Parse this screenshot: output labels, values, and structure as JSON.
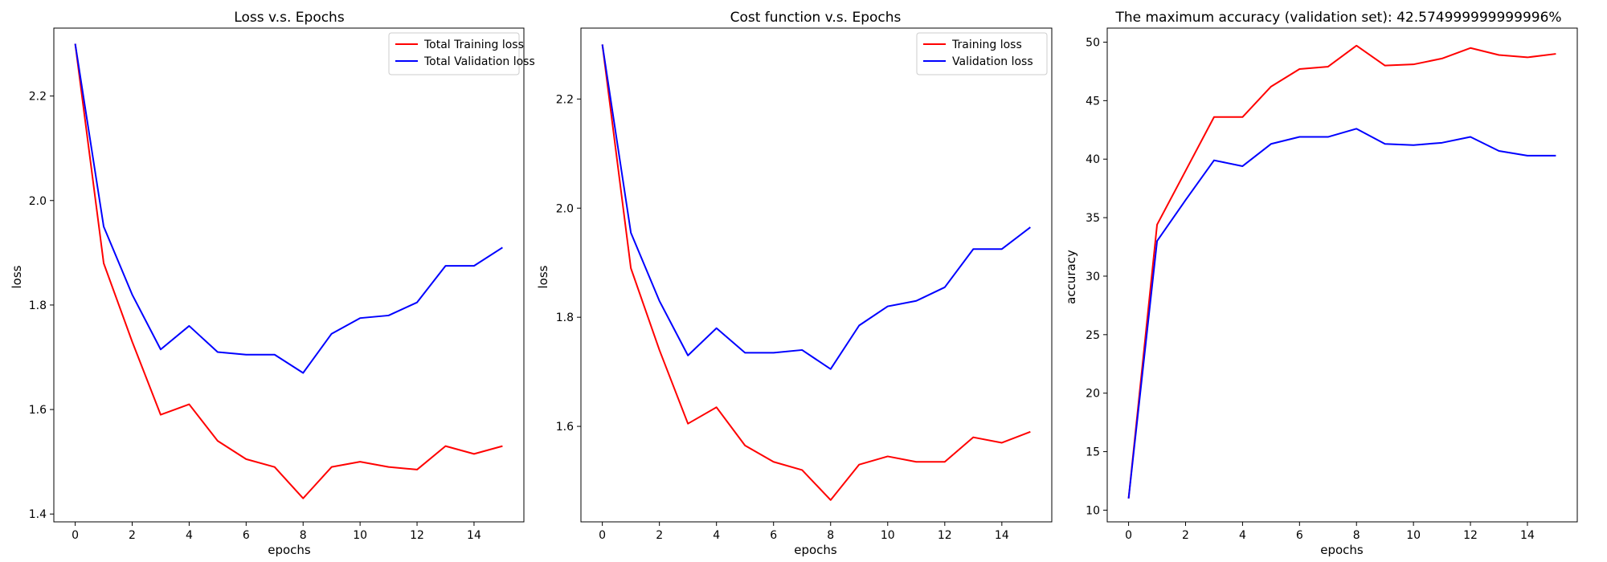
{
  "chart_data": [
    {
      "type": "line",
      "title": "Loss v.s. Epochs",
      "xlabel": "epochs",
      "ylabel": "loss",
      "xlim": [
        -0.75,
        15.75
      ],
      "ylim": [
        1.385,
        2.33
      ],
      "xticks": [
        0,
        2,
        4,
        6,
        8,
        10,
        12,
        14
      ],
      "yticks": [
        1.4,
        1.6,
        1.8,
        2.0,
        2.2
      ],
      "ytick_decimals": 1,
      "legend_position": "upper right",
      "grid": false,
      "x": [
        0,
        1,
        2,
        3,
        4,
        5,
        6,
        7,
        8,
        9,
        10,
        11,
        12,
        13,
        14,
        15
      ],
      "series": [
        {
          "name": "Total Training loss",
          "color": "#ff0000",
          "values": [
            2.3,
            1.88,
            1.73,
            1.59,
            1.61,
            1.54,
            1.505,
            1.49,
            1.43,
            1.49,
            1.5,
            1.49,
            1.485,
            1.53,
            1.515,
            1.53
          ]
        },
        {
          "name": "Total Validation loss",
          "color": "#0000ff",
          "values": [
            2.3,
            1.95,
            1.82,
            1.715,
            1.76,
            1.71,
            1.705,
            1.705,
            1.67,
            1.745,
            1.775,
            1.78,
            1.805,
            1.875,
            1.875,
            1.91
          ]
        }
      ]
    },
    {
      "type": "line",
      "title": "Cost function v.s. Epochs",
      "xlabel": "epochs",
      "ylabel": "loss",
      "xlim": [
        -0.75,
        15.75
      ],
      "ylim": [
        1.425,
        2.33
      ],
      "xticks": [
        0,
        2,
        4,
        6,
        8,
        10,
        12,
        14
      ],
      "yticks": [
        1.6,
        1.8,
        2.0,
        2.2
      ],
      "ytick_decimals": 1,
      "legend_position": "upper right",
      "grid": false,
      "x": [
        0,
        1,
        2,
        3,
        4,
        5,
        6,
        7,
        8,
        9,
        10,
        11,
        12,
        13,
        14,
        15
      ],
      "series": [
        {
          "name": "Training loss",
          "color": "#ff0000",
          "values": [
            2.3,
            1.89,
            1.74,
            1.605,
            1.635,
            1.565,
            1.535,
            1.52,
            1.465,
            1.53,
            1.545,
            1.535,
            1.535,
            1.58,
            1.57,
            1.59
          ]
        },
        {
          "name": "Validation loss",
          "color": "#0000ff",
          "values": [
            2.3,
            1.955,
            1.83,
            1.73,
            1.78,
            1.735,
            1.735,
            1.74,
            1.705,
            1.785,
            1.82,
            1.83,
            1.855,
            1.925,
            1.925,
            1.965
          ]
        }
      ]
    },
    {
      "type": "line",
      "title": "The maximum accuracy (validation set): 42.574999999999996%",
      "xlabel": "epochs",
      "ylabel": "accuracy",
      "xlim": [
        -0.75,
        15.75
      ],
      "ylim": [
        9.0,
        51.2
      ],
      "xticks": [
        0,
        2,
        4,
        6,
        8,
        10,
        12,
        14
      ],
      "yticks": [
        10,
        15,
        20,
        25,
        30,
        35,
        40,
        45,
        50
      ],
      "ytick_decimals": 0,
      "legend_position": "none",
      "grid": false,
      "x": [
        0,
        1,
        2,
        3,
        4,
        5,
        6,
        7,
        8,
        9,
        10,
        11,
        12,
        13,
        14,
        15
      ],
      "series": [
        {
          "color": "#ff0000",
          "values": [
            11.0,
            34.4,
            39.0,
            43.6,
            43.6,
            46.2,
            47.7,
            47.9,
            49.7,
            48.0,
            48.1,
            48.6,
            49.5,
            48.9,
            48.7,
            49.0
          ]
        },
        {
          "color": "#0000ff",
          "values": [
            11.0,
            33.0,
            36.5,
            39.9,
            39.4,
            41.3,
            41.9,
            41.9,
            42.6,
            41.3,
            41.2,
            41.4,
            41.9,
            40.7,
            40.3,
            40.3
          ]
        }
      ]
    }
  ]
}
